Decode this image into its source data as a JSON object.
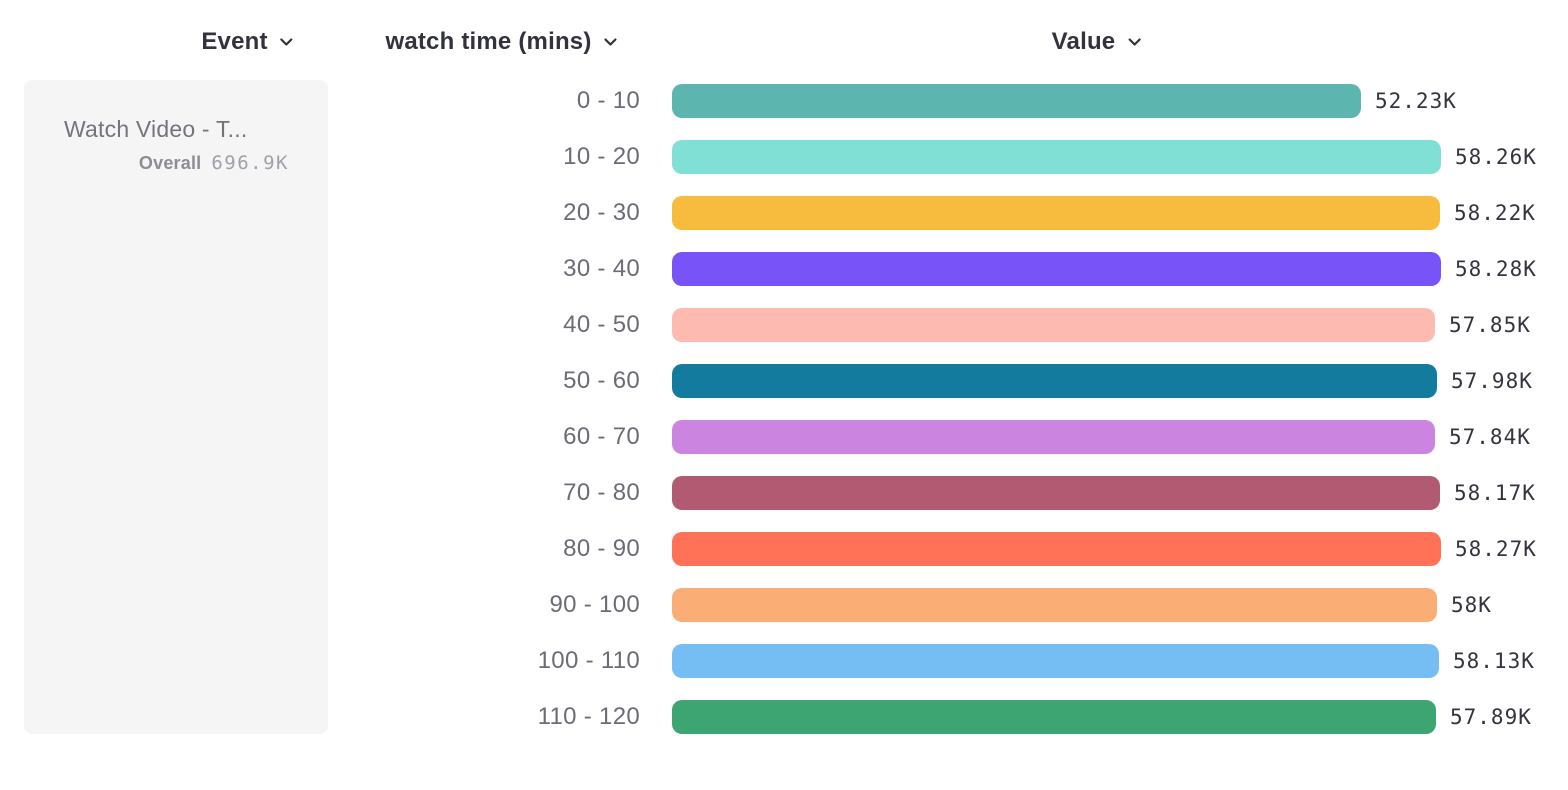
{
  "header": {
    "event_label": "Event",
    "series_label": "watch time (mins)",
    "value_label": "Value"
  },
  "event_card": {
    "name": "Watch Video - T...",
    "overall_label": "Overall",
    "overall_value": "696.9K"
  },
  "chart_data": {
    "type": "bar",
    "orientation": "horizontal",
    "title": "",
    "xlabel": "watch time (mins)",
    "ylabel": "Value",
    "categories": [
      "0 - 10",
      "10 - 20",
      "20 - 30",
      "30 - 40",
      "40 - 50",
      "50 - 60",
      "60 - 70",
      "70 - 80",
      "80 - 90",
      "90 - 100",
      "100 - 110",
      "110 - 120"
    ],
    "values": [
      52230,
      58260,
      58220,
      58280,
      57850,
      57980,
      57840,
      58170,
      58270,
      58000,
      58130,
      57890
    ],
    "value_labels": [
      "52.23K",
      "58.26K",
      "58.22K",
      "58.28K",
      "57.85K",
      "57.98K",
      "57.84K",
      "58.17K",
      "58.27K",
      "58K",
      "58.13K",
      "57.89K"
    ],
    "bar_colors": [
      "#5cb5ae",
      "#80e0d5",
      "#f7bb3e",
      "#7753f8",
      "#fcbab0",
      "#137b9e",
      "#cb85e1",
      "#b25a71",
      "#ff7258",
      "#fbad76",
      "#75bef4",
      "#3da571"
    ],
    "overall_total": "696.9K",
    "xlim": [
      0,
      58280
    ],
    "grid": false,
    "legend": false
  }
}
